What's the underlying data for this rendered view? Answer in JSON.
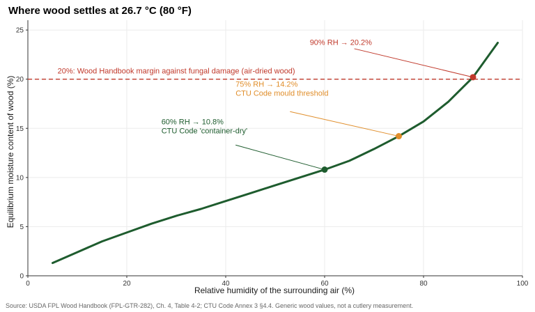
{
  "chart_data": {
    "type": "line",
    "title": "Where wood settles at 26.7 °C (80 °F)",
    "xlabel": "Relative humidity of the surrounding air (%)",
    "ylabel": "Equilibrium moisture content of wood (%)",
    "xlim": [
      0,
      100
    ],
    "ylim": [
      0,
      26
    ],
    "xticks": [
      0,
      20,
      40,
      60,
      80,
      100
    ],
    "yticks": [
      0,
      5,
      10,
      15,
      20,
      25
    ],
    "grid": true,
    "series": [
      {
        "color": "#1e5c2e",
        "x": [
          5,
          10,
          15,
          20,
          25,
          30,
          35,
          40,
          45,
          50,
          55,
          60,
          65,
          70,
          75,
          80,
          85,
          90,
          95
        ],
        "y": [
          1.3,
          2.4,
          3.5,
          4.4,
          5.3,
          6.1,
          6.8,
          7.6,
          8.4,
          9.2,
          10.0,
          10.8,
          11.7,
          12.9,
          14.2,
          15.7,
          17.7,
          20.2,
          23.7
        ]
      }
    ],
    "reference_line": {
      "y": 20,
      "color": "#c0392b",
      "label": "20%: Wood Handbook margin against fungal damage (air-dried wood)"
    },
    "annotations": [
      {
        "x": 60,
        "y": 10.8,
        "color": "#1e5c2e",
        "lines": [
          "60% RH → 10.8%",
          "CTU Code 'container-dry'"
        ]
      },
      {
        "x": 75,
        "y": 14.2,
        "color": "#e08e2b",
        "lines": [
          "75% RH → 14.2%",
          "CTU Code mould threshold"
        ]
      },
      {
        "x": 90,
        "y": 20.2,
        "color": "#c0392b",
        "lines": [
          "90% RH → 20.2%"
        ]
      }
    ]
  },
  "caption": "Source: USDA FPL Wood Handbook (FPL-GTR-282), Ch. 4, Table 4-2; CTU Code Annex 3 §4.4. Generic wood values, not a cutlery measurement."
}
